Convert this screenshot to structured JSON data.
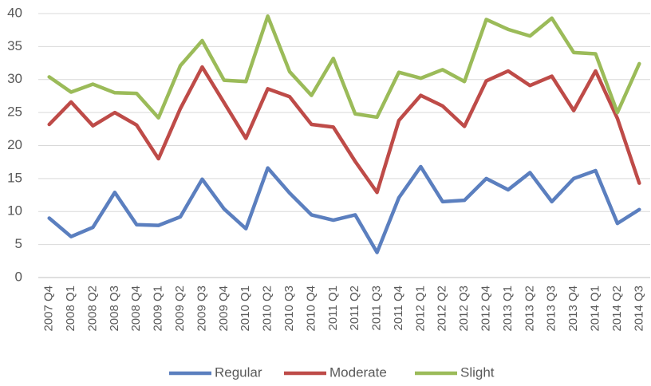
{
  "chart_data": {
    "type": "line",
    "categories": [
      "2007 Q4",
      "2008 Q1",
      "2008 Q2",
      "2008 Q3",
      "2008 Q4",
      "2009 Q1",
      "2009 Q2",
      "2009 Q3",
      "2009 Q4",
      "2010 Q1",
      "2010 Q2",
      "2010 Q3",
      "2010 Q4",
      "2011 Q1",
      "2011 Q2",
      "2011 Q3",
      "2011 Q4",
      "2012 Q1",
      "2012 Q2",
      "2012 Q3",
      "2012 Q4",
      "2013 Q1",
      "2013 Q2",
      "2013 Q3",
      "2013 Q4",
      "2014 Q1",
      "2014 Q2",
      "2014 Q3"
    ],
    "series": [
      {
        "name": "Regular",
        "color": "#5b7fbf",
        "values": [
          9.0,
          6.2,
          7.6,
          12.9,
          8.0,
          7.9,
          9.2,
          14.9,
          10.4,
          7.4,
          16.6,
          12.8,
          9.5,
          8.7,
          9.5,
          3.8,
          12.1,
          16.8,
          11.5,
          11.7,
          15.0,
          13.3,
          15.9,
          11.5,
          15.0,
          16.2,
          8.2,
          10.3
        ]
      },
      {
        "name": "Moderate",
        "color": "#be4b48",
        "values": [
          23.2,
          26.6,
          23.0,
          25.0,
          23.1,
          18.0,
          25.6,
          31.9,
          26.5,
          21.1,
          28.6,
          27.4,
          23.2,
          22.8,
          17.6,
          12.9,
          23.8,
          27.6,
          26.0,
          22.9,
          29.8,
          31.3,
          29.1,
          30.5,
          25.3,
          31.3,
          24.1,
          14.3
        ]
      },
      {
        "name": "Slight",
        "color": "#9bbb59",
        "values": [
          30.4,
          28.1,
          29.3,
          28.0,
          27.9,
          24.2,
          32.1,
          35.9,
          29.9,
          29.7,
          39.6,
          31.2,
          27.6,
          33.2,
          24.8,
          24.3,
          31.1,
          30.2,
          31.5,
          29.7,
          39.1,
          37.6,
          36.6,
          39.3,
          34.1,
          33.9,
          25.0,
          32.4
        ]
      }
    ],
    "ylim": [
      0,
      40
    ],
    "yticks": [
      0,
      5,
      10,
      15,
      20,
      25,
      30,
      35,
      40
    ],
    "grid": true,
    "legend": "bottom"
  }
}
